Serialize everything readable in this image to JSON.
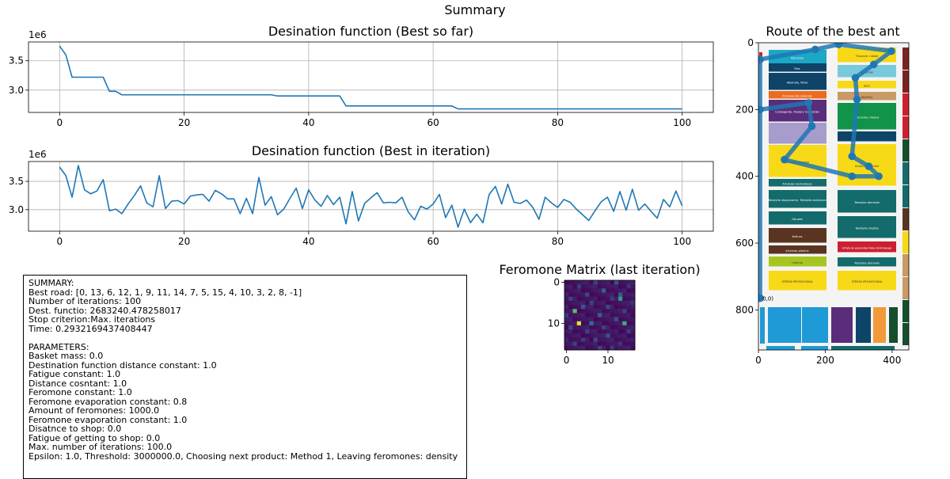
{
  "figure": {
    "suptitle": "Summary"
  },
  "chart_data": [
    {
      "type": "line",
      "title": "Desination function (Best so far)",
      "xlabel": "",
      "ylabel": "",
      "y_offset_label": "1e6",
      "xlim": [
        -5,
        105
      ],
      "ylim": [
        2.62,
        3.82
      ],
      "xticks": [
        0,
        20,
        40,
        60,
        80,
        100
      ],
      "yticks": [
        3.0,
        3.5
      ],
      "yticklabels": [
        "3.0",
        "3.5"
      ],
      "grid": true,
      "color": "#1f77b4",
      "x": [
        0,
        1,
        2,
        3,
        4,
        5,
        6,
        7,
        8,
        9,
        10,
        11,
        12,
        13,
        14,
        15,
        16,
        17,
        18,
        19,
        20,
        21,
        22,
        23,
        24,
        25,
        26,
        27,
        28,
        29,
        30,
        31,
        32,
        33,
        34,
        35,
        36,
        37,
        38,
        39,
        40,
        41,
        42,
        43,
        44,
        45,
        46,
        47,
        48,
        49,
        50,
        51,
        52,
        53,
        54,
        55,
        56,
        57,
        58,
        59,
        60,
        61,
        62,
        63,
        64,
        65,
        66,
        67,
        68,
        69,
        70,
        71,
        72,
        73,
        74,
        75,
        76,
        77,
        78,
        79,
        80,
        81,
        82,
        83,
        84,
        85,
        86,
        87,
        88,
        89,
        90,
        91,
        92,
        93,
        94,
        95,
        96,
        97,
        98,
        99,
        100
      ],
      "y": [
        3.75,
        3.6,
        3.22,
        3.22,
        3.22,
        3.22,
        3.22,
        3.22,
        2.98,
        2.98,
        2.92,
        2.92,
        2.92,
        2.92,
        2.92,
        2.92,
        2.92,
        2.92,
        2.92,
        2.92,
        2.92,
        2.92,
        2.92,
        2.92,
        2.92,
        2.92,
        2.92,
        2.92,
        2.92,
        2.92,
        2.92,
        2.92,
        2.92,
        2.92,
        2.92,
        2.9,
        2.9,
        2.9,
        2.9,
        2.9,
        2.9,
        2.9,
        2.9,
        2.9,
        2.9,
        2.9,
        2.73,
        2.73,
        2.73,
        2.73,
        2.73,
        2.73,
        2.73,
        2.73,
        2.73,
        2.73,
        2.73,
        2.73,
        2.73,
        2.73,
        2.73,
        2.73,
        2.73,
        2.73,
        2.68,
        2.68,
        2.68,
        2.68,
        2.68,
        2.68,
        2.68,
        2.68,
        2.68,
        2.68,
        2.68,
        2.68,
        2.68,
        2.68,
        2.68,
        2.68,
        2.68,
        2.68,
        2.68,
        2.68,
        2.68,
        2.68,
        2.68,
        2.68,
        2.68,
        2.68,
        2.68,
        2.68,
        2.68,
        2.68,
        2.68,
        2.68,
        2.68,
        2.68,
        2.68,
        2.68,
        2.68
      ]
    },
    {
      "type": "line",
      "title": "Desination function (Best in iteration)",
      "xlabel": "",
      "ylabel": "",
      "y_offset_label": "1e6",
      "xlim": [
        -5,
        105
      ],
      "ylim": [
        2.62,
        3.85
      ],
      "xticks": [
        0,
        20,
        40,
        60,
        80,
        100
      ],
      "yticks": [
        3.0,
        3.5
      ],
      "yticklabels": [
        "3.0",
        "3.5"
      ],
      "grid": true,
      "color": "#1f77b4",
      "x": [
        0,
        1,
        2,
        3,
        4,
        5,
        6,
        7,
        8,
        9,
        10,
        11,
        12,
        13,
        14,
        15,
        16,
        17,
        18,
        19,
        20,
        21,
        22,
        23,
        24,
        25,
        26,
        27,
        28,
        29,
        30,
        31,
        32,
        33,
        34,
        35,
        36,
        37,
        38,
        39,
        40,
        41,
        42,
        43,
        44,
        45,
        46,
        47,
        48,
        49,
        50,
        51,
        52,
        53,
        54,
        55,
        56,
        57,
        58,
        59,
        60,
        61,
        62,
        63,
        64,
        65,
        66,
        67,
        68,
        69,
        70,
        71,
        72,
        73,
        74,
        75,
        76,
        77,
        78,
        79,
        80,
        81,
        82,
        83,
        84,
        85,
        86,
        87,
        88,
        89,
        90,
        91,
        92,
        93,
        94,
        95,
        96,
        97,
        98,
        99,
        100
      ],
      "y": [
        3.75,
        3.6,
        3.22,
        3.78,
        3.35,
        3.28,
        3.33,
        3.53,
        2.98,
        3.01,
        2.93,
        3.1,
        3.25,
        3.42,
        3.12,
        3.05,
        3.6,
        3.02,
        3.15,
        3.16,
        3.1,
        3.24,
        3.26,
        3.27,
        3.15,
        3.34,
        3.28,
        3.19,
        3.19,
        2.93,
        3.2,
        2.93,
        3.57,
        3.08,
        3.23,
        2.91,
        3.01,
        3.2,
        3.38,
        3.02,
        3.35,
        3.17,
        3.06,
        3.25,
        3.09,
        3.22,
        2.75,
        3.32,
        2.8,
        3.11,
        3.21,
        3.3,
        3.12,
        3.13,
        3.12,
        3.22,
        2.96,
        2.82,
        3.06,
        3.01,
        3.1,
        3.27,
        2.86,
        3.08,
        2.69,
        3.01,
        2.77,
        2.92,
        2.77,
        3.27,
        3.41,
        3.1,
        3.45,
        3.13,
        3.11,
        3.17,
        3.04,
        2.83,
        3.22,
        3.12,
        3.04,
        3.18,
        3.13,
        3.01,
        2.91,
        2.81,
        2.98,
        3.14,
        3.22,
        2.97,
        3.32,
        2.99,
        3.36,
        2.99,
        3.1,
        2.97,
        2.85,
        3.18,
        3.05,
        3.33,
        3.07
      ]
    },
    {
      "type": "heatmap",
      "title": "Feromone Matrix (last iteration)",
      "xlabel": "",
      "ylabel": "",
      "xticks": [
        0,
        10
      ],
      "yticks": [
        0,
        10
      ],
      "size": 17,
      "colormap": "viridis",
      "base_value": 0.02,
      "cells": [
        [
          0,
          7,
          0.2
        ],
        [
          0,
          12,
          0.25
        ],
        [
          1,
          3,
          0.18
        ],
        [
          1,
          15,
          0.15
        ],
        [
          2,
          9,
          0.3
        ],
        [
          3,
          5,
          0.22
        ],
        [
          3,
          13,
          0.28
        ],
        [
          4,
          1,
          0.2
        ],
        [
          4,
          11,
          0.18
        ],
        [
          4,
          13,
          0.55
        ],
        [
          5,
          6,
          0.2
        ],
        [
          5,
          16,
          0.15
        ],
        [
          6,
          4,
          0.25
        ],
        [
          6,
          10,
          0.22
        ],
        [
          7,
          2,
          0.7
        ],
        [
          7,
          14,
          0.2
        ],
        [
          8,
          0,
          0.18
        ],
        [
          8,
          8,
          0.3
        ],
        [
          9,
          12,
          0.24
        ],
        [
          10,
          3,
          0.95
        ],
        [
          10,
          6,
          0.35
        ],
        [
          10,
          14,
          0.62
        ],
        [
          11,
          1,
          0.22
        ],
        [
          11,
          9,
          0.2
        ],
        [
          12,
          5,
          0.2
        ],
        [
          12,
          15,
          0.18
        ],
        [
          13,
          10,
          0.25
        ],
        [
          14,
          4,
          0.18
        ],
        [
          14,
          7,
          0.22
        ],
        [
          15,
          2,
          0.2
        ],
        [
          15,
          13,
          0.16
        ],
        [
          16,
          8,
          0.2
        ],
        [
          16,
          11,
          0.18
        ]
      ]
    },
    {
      "type": "line",
      "title": "Route of the best ant",
      "xlabel": "",
      "ylabel": "",
      "xlim": [
        0,
        450
      ],
      "ylim": [
        920,
        0
      ],
      "xticks": [
        0,
        200,
        400
      ],
      "yticks": [
        0,
        200,
        400,
        600,
        800
      ],
      "grid": false,
      "color": "#1f77b4",
      "background": "store-floor-plan",
      "start_label": "0,0)",
      "x": [
        5,
        5,
        150,
        160,
        78,
        280,
        360,
        330,
        280,
        295,
        290,
        345,
        398,
        240,
        170,
        5,
        5
      ],
      "y": [
        765,
        200,
        180,
        250,
        350,
        400,
        400,
        370,
        340,
        170,
        105,
        65,
        25,
        5,
        20,
        50,
        765
      ]
    }
  ],
  "summary": {
    "lines": [
      "SUMMARY:",
      "Best road: [0, 13, 6, 12, 1, 9, 11, 14, 7, 5, 15, 4, 10, 3, 2, 8, -1]",
      "Number of iterations: 100",
      "Dest. functio: 2683240.478258017",
      "Stop criterion:Max. iterations",
      "Time: 0.2932169437408447",
      "",
      "PARAMETERS:",
      "Basket mass: 0.0",
      "Destination function distance constant: 1.0",
      "Fatigue constant: 1.0",
      "Distance cosntant: 1.0",
      "Feromone constant: 1.0",
      "Feromone evaporation constant: 0.8",
      "Amount of feromones: 1000.0",
      "Feromone evaporation constant: 1.0",
      "Disatnce to shop: 0.0",
      "Fatigue of getting to shop: 0.0",
      "Max. number of iterations: 100.0",
      "Epsilon: 1.0, Threshold: 3000000.0, Choosing next product: Method 1, Leaving feromones: density"
    ]
  },
  "floor_plan": {
    "colors": {
      "yellow": "#f7d917",
      "teal": "#136b6b",
      "cyan": "#1aa8c4",
      "navy": "#0e4468",
      "orange": "#ec6b1f",
      "purple": "#5a2d7a",
      "lilac": "#a89ccc",
      "green": "#11934a",
      "brown": "#5a3420",
      "lime": "#a7c520",
      "darkred": "#7a2422",
      "red": "#cc1f2f",
      "blue": "#1f9ad6",
      "lightblue": "#79c9dc",
      "darkgreen": "#154f2e",
      "tan": "#c99a64"
    },
    "left_blocks": [
      [
        "Pieczywo",
        63,
        82,
        "cyan"
      ],
      [
        "Pies",
        80,
        92,
        "navy"
      ],
      [
        "Alkohole, Wina",
        92,
        115,
        "navy"
      ],
      [
        "Artykuły dla zwierząt",
        115,
        126,
        "orange"
      ],
      [
        "Czekogardy, Poplary Gadżetów",
        126,
        155,
        "purple"
      ],
      [
        "",
        155,
        183,
        "lilac"
      ],
      [
        "Artykuły stołowe",
        183,
        225,
        "yellow"
      ],
      [
        "Artykuły niemowlęce",
        226,
        237,
        "teal"
      ],
      [
        "Tekstylia stacjonarne, Tekstylia dziecięce",
        240,
        264,
        "teal"
      ],
      [
        "Obuwie",
        267,
        285,
        "teal"
      ],
      [
        "Kultura",
        288,
        308,
        "brown"
      ],
      [
        "Artykuły szkolne",
        310,
        322,
        "brown"
      ],
      [
        "Chemia",
        324,
        338,
        "lime"
      ],
      [
        "STREFA PROMOCYJNA",
        342,
        368,
        "yellow"
      ]
    ],
    "right_blocks": [
      [
        "Tłuszcze, nabiał",
        60,
        80,
        "yellow"
      ],
      [
        "Mrożonki",
        82,
        99,
        "lightblue"
      ],
      [
        "Sery",
        102,
        113,
        "yellow"
      ],
      [
        "Wędliny",
        116,
        128,
        "tan"
      ],
      [
        "Warzywa, Owoce",
        130,
        165,
        "green"
      ],
      [
        "",
        166,
        180,
        "navy"
      ],
      [
        "Artykuły chłodne",
        182,
        236,
        "yellow"
      ],
      [
        "Tekstylia damskie",
        240,
        270,
        "teal"
      ],
      [
        "Tekstylia męskie",
        273,
        302,
        "teal"
      ],
      [
        "Artykuły gospodarstwa domowego",
        305,
        320,
        "red"
      ],
      [
        "Tekstylia domowe",
        325,
        338,
        "teal"
      ],
      [
        "STREFA PROMOCYJNA",
        342,
        368,
        "yellow"
      ]
    ]
  }
}
